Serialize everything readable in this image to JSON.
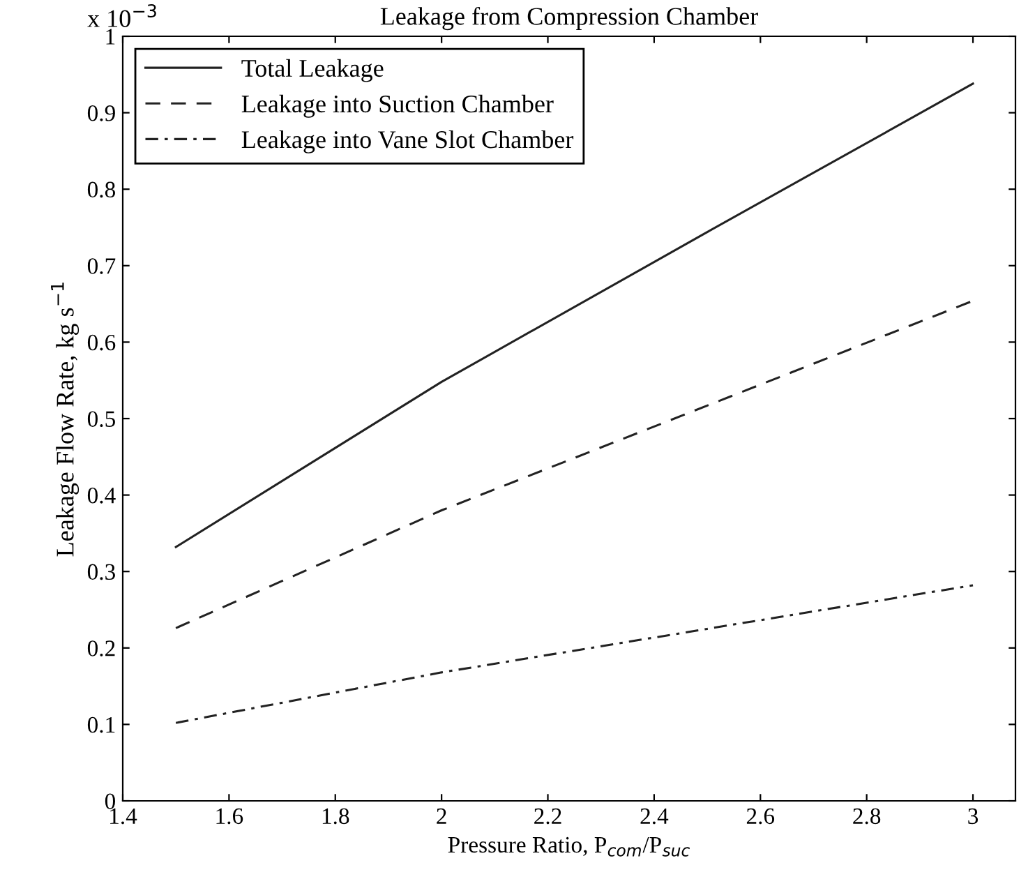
{
  "chart_data": {
    "type": "line",
    "title": "Leakage from Compression Chamber",
    "xlabel": "Pressure Ratio, P$_{com}$/P$_{suc}$",
    "ylabel": "Leakage Flow Rate, kg s$^{−1}$",
    "annotations": [
      "x 10$^{−3}$"
    ],
    "x": [
      1.5,
      2,
      2.5,
      3
    ],
    "series": [
      {
        "name": "Total Leakage",
        "color": "#222222",
        "line_style": "solid",
        "values": [
          0.332,
          0.548,
          0.744,
          0.938
        ]
      },
      {
        "name": "Leakage into Suction Chamber",
        "color": "#222222",
        "line_style": "dashed",
        "values": [
          0.226,
          0.38,
          0.517,
          0.654
        ]
      },
      {
        "name": "Leakage into Vane Slot Chamber",
        "color": "#222222",
        "line_style": "dashdot",
        "values": [
          0.102,
          0.168,
          0.225,
          0.282
        ]
      }
    ],
    "xlim": [
      1.4,
      3.08
    ],
    "xticks": [
      {
        "value": 1.4,
        "label": "1.4"
      },
      1.6,
      1.8,
      2,
      2.2,
      2.4,
      2.6,
      2.8,
      3
    ],
    "ylim": [
      0,
      1
    ],
    "yticks": [
      0,
      0.1,
      0.2,
      0.3,
      0.4,
      0.5,
      0.6,
      0.7,
      0.8,
      0.9,
      1
    ],
    "grid": false,
    "legend": "top left",
    "marker": "none"
  }
}
